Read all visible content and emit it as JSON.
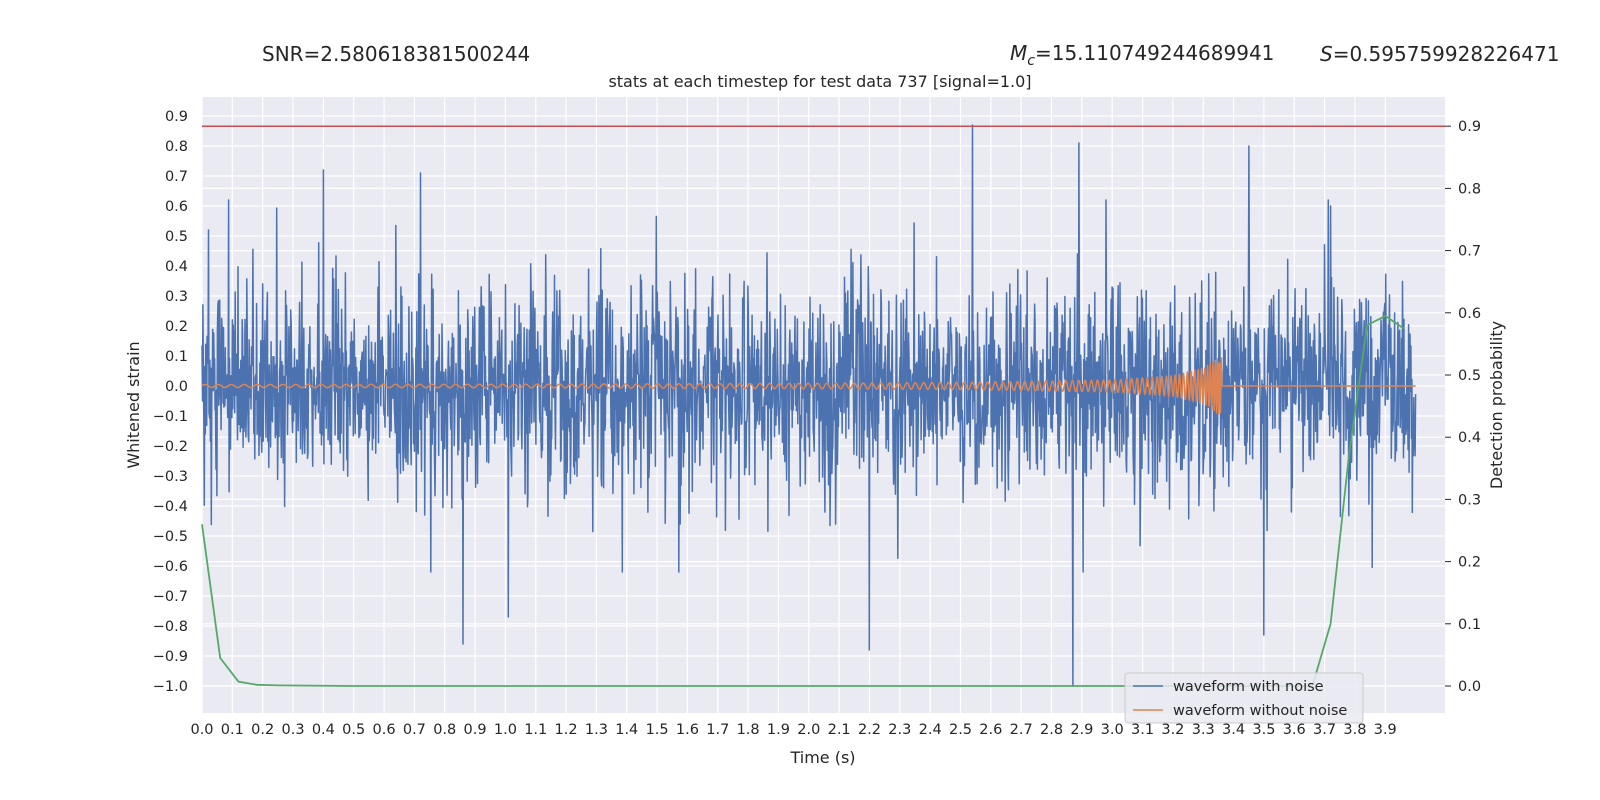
{
  "header": {
    "snr_text": "SNR=2.580618381500244",
    "mc_symbol": "M",
    "mc_subscript": "c",
    "mc_value": "=15.110749244689941",
    "s_symbol": "S",
    "s_value": "=0.595759928226471"
  },
  "chart_data": {
    "type": "line",
    "title": "stats at each timestep for test data 737 [signal=1.0]",
    "xlabel": "Time (s)",
    "ylabel": "Whitened strain",
    "y2label": "Detection probability",
    "xlim": [
      0.0,
      4.0
    ],
    "ylim": [
      -1.09,
      1.0
    ],
    "y2lim": [
      -0.045,
      0.945
    ],
    "xticks": [
      0.0,
      0.1,
      0.2,
      0.3,
      0.4,
      0.5,
      0.6,
      0.7,
      0.8,
      0.9,
      1.0,
      1.1,
      1.2,
      1.3,
      1.4,
      1.5,
      1.6,
      1.7,
      1.8,
      1.9,
      2.0,
      2.1,
      2.2,
      2.3,
      2.4,
      2.5,
      2.6,
      2.7,
      2.8,
      2.9,
      3.0,
      3.1,
      3.2,
      3.3,
      3.4,
      3.5,
      3.6,
      3.7,
      3.8,
      3.9
    ],
    "xtick_labels": [
      "0.0",
      "0.1",
      "0.2",
      "0.3",
      "0.4",
      "0.5",
      "0.6",
      "0.7",
      "0.8",
      "0.9",
      "1.0",
      "1.1",
      "1.2",
      "1.3",
      "1.4",
      "1.5",
      "1.6",
      "1.7",
      "1.8",
      "1.9",
      "2.0",
      "2.1",
      "2.2",
      "2.3",
      "2.4",
      "2.5",
      "2.6",
      "2.7",
      "2.8",
      "2.9",
      "3.0",
      "3.1",
      "3.2",
      "3.3",
      "3.4",
      "3.5",
      "3.6",
      "3.7",
      "3.8",
      "3.9"
    ],
    "yticks": [
      0.9,
      0.8,
      0.7,
      0.6,
      0.5,
      0.4,
      0.3,
      0.2,
      0.1,
      0.0,
      -0.1,
      -0.2,
      -0.3,
      -0.4,
      -0.5,
      -0.6,
      -0.7,
      -0.8,
      -0.9,
      -1.0
    ],
    "ytick_labels": [
      "0.9",
      "0.8",
      "0.7",
      "0.6",
      "0.5",
      "0.4",
      "0.3",
      "0.2",
      "0.1",
      "0.0",
      "−0.1",
      "−0.2",
      "−0.3",
      "−0.4",
      "−0.5",
      "−0.6",
      "−0.7",
      "−0.8",
      "−0.9",
      "−1.0"
    ],
    "y2ticks": [
      0.9,
      0.8,
      0.7,
      0.6,
      0.5,
      0.4,
      0.3,
      0.2,
      0.1,
      0.0
    ],
    "y2tick_labels": [
      "0.9",
      "0.8",
      "0.7",
      "0.6",
      "0.5",
      "0.4",
      "0.3",
      "0.2",
      "0.1",
      "0.0"
    ],
    "grid": true,
    "legend_position": "lower-right",
    "series": [
      {
        "name": "waveform with noise",
        "axis": "left",
        "color": "#4c72b0",
        "kind": "noise",
        "peak_events": [
          {
            "x": 2.54,
            "y": 0.87
          },
          {
            "x": 2.87,
            "y": -1.0
          },
          {
            "x": 2.89,
            "y": 0.81
          },
          {
            "x": 3.45,
            "y": 0.8
          },
          {
            "x": 0.4,
            "y": 0.72
          },
          {
            "x": 0.72,
            "y": 0.71
          },
          {
            "x": 0.86,
            "y": -0.86
          },
          {
            "x": 1.01,
            "y": -0.77
          },
          {
            "x": 2.2,
            "y": -0.88
          },
          {
            "x": 3.5,
            "y": -0.83
          },
          {
            "x": 3.72,
            "y": 0.6
          }
        ],
        "range_approx": [
          -1.0,
          0.87
        ]
      },
      {
        "name": "waveform without noise",
        "axis": "left",
        "color": "#dd8452",
        "kind": "chirp",
        "merger_time": 3.36,
        "peak_amplitude": 0.1,
        "x": [
          0.0,
          1.0,
          2.0,
          2.5,
          3.0,
          3.2,
          3.3,
          3.36,
          3.4,
          4.0
        ],
        "envelope": [
          0.005,
          0.006,
          0.009,
          0.012,
          0.02,
          0.035,
          0.06,
          0.1,
          0.0,
          0.0
        ]
      },
      {
        "name": "",
        "axis": "right",
        "color": "#55a868",
        "x": [
          0.0,
          0.06,
          0.12,
          0.18,
          0.25,
          0.5,
          1.0,
          1.5,
          2.0,
          2.5,
          3.0,
          3.3,
          3.5,
          3.6,
          3.66,
          3.72,
          3.78,
          3.84,
          3.9,
          3.96
        ],
        "y": [
          0.26,
          0.045,
          0.007,
          0.002,
          0.001,
          0.0,
          0.0,
          0.0,
          0.0,
          0.0,
          0.0,
          0.0,
          0.0,
          0.0,
          0.0,
          0.1,
          0.37,
          0.58,
          0.595,
          0.575
        ]
      },
      {
        "name": "",
        "axis": "right",
        "color": "#c44e52",
        "kind": "hline",
        "y": [
          0.9
        ]
      }
    ]
  }
}
